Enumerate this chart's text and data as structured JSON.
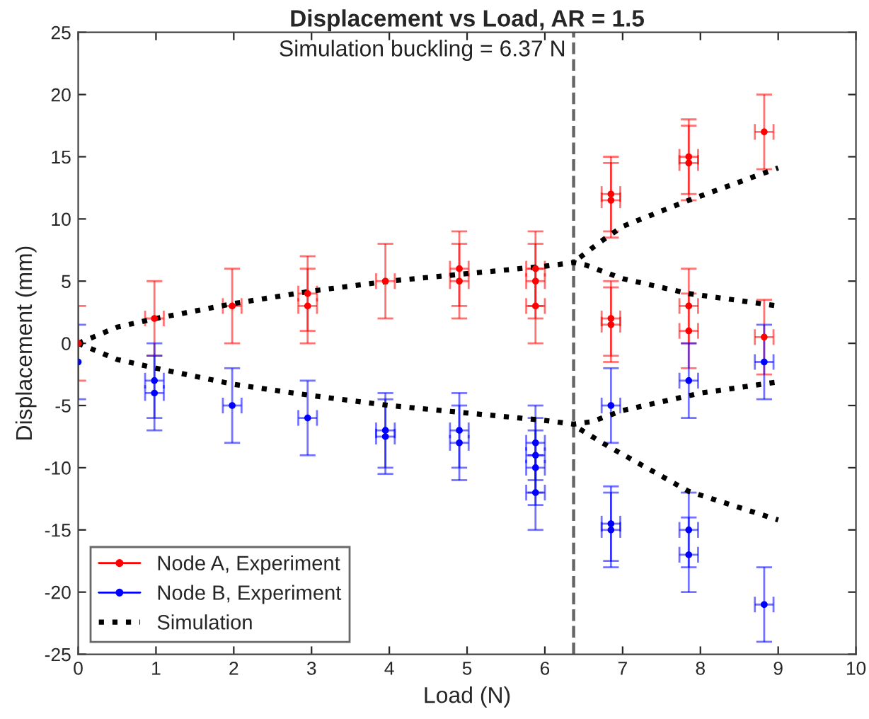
{
  "chart_data": {
    "type": "scatter",
    "title": "Displacement vs Load, AR = 1.5",
    "xlabel": "Load (N)",
    "ylabel": "Displacement (mm)",
    "xlim": [
      0,
      10
    ],
    "ylim": [
      -25,
      25
    ],
    "xticks": [
      0,
      1,
      2,
      3,
      4,
      5,
      6,
      7,
      8,
      9,
      10
    ],
    "yticks": [
      -25,
      -20,
      -15,
      -10,
      -5,
      0,
      5,
      10,
      15,
      20,
      25
    ],
    "grid": false,
    "legend": "bottom left",
    "marker": "circle",
    "series": [
      {
        "name": "Node A, Experiment",
        "color": "#ff0000",
        "x": [
          0,
          0.98,
          1.98,
          2.95,
          2.95,
          3.95,
          4.9,
          4.9,
          5.88,
          5.88,
          5.88,
          6.85,
          6.85,
          6.85,
          6.85,
          7.85,
          7.85,
          7.85,
          7.85,
          8.82,
          8.82
        ],
        "values": [
          0,
          2,
          3,
          4,
          3,
          5,
          6,
          5,
          6,
          5,
          3,
          12,
          11.5,
          2,
          1.5,
          15,
          14.5,
          3,
          1,
          17,
          0.5
        ],
        "errors": [
          3,
          3,
          3,
          3,
          3,
          3,
          3,
          3,
          3,
          3,
          3,
          3,
          3,
          3,
          3,
          3,
          3,
          3,
          3,
          3,
          3
        ],
        "xerrors": [
          null,
          0.12,
          0.12,
          0.12,
          0.12,
          0.12,
          0.12,
          0.12,
          0.12,
          0.12,
          0.12,
          0.12,
          0.12,
          0.12,
          0.12,
          0.12,
          0.12,
          0.12,
          0.12,
          0.12,
          0.12
        ]
      },
      {
        "name": "Node B, Experiment",
        "color": "#0000ff",
        "x": [
          0,
          0.98,
          0.98,
          1.98,
          2.95,
          3.95,
          3.95,
          4.9,
          4.9,
          5.88,
          5.88,
          5.88,
          5.88,
          6.85,
          6.85,
          6.85,
          7.85,
          7.85,
          7.85,
          8.82,
          8.82
        ],
        "values": [
          -1.5,
          -3,
          -4,
          -5,
          -6,
          -7,
          -7.5,
          -7,
          -8,
          -8,
          -9,
          -10,
          -12,
          -5,
          -14.5,
          -15,
          -3,
          -15,
          -17,
          -1.5,
          -21
        ],
        "errors": [
          3,
          3,
          3,
          3,
          3,
          3,
          3,
          3,
          3,
          3,
          3,
          3,
          3,
          3,
          3,
          3,
          3,
          3,
          3,
          3,
          3
        ],
        "xerrors": [
          null,
          0.12,
          0.12,
          0.12,
          0.12,
          0.12,
          0.12,
          0.12,
          0.12,
          0.12,
          0.12,
          0.12,
          0.12,
          0.12,
          0.12,
          0.12,
          0.12,
          0.12,
          0.12,
          0.12,
          0.12
        ]
      },
      {
        "name": "Simulation",
        "color": "#000000",
        "type": "line",
        "line_style": "dotted",
        "marker": "none",
        "x": [
          0,
          0.5,
          1,
          2,
          3,
          4,
          5,
          6,
          6.37,
          6.52,
          7,
          7.85,
          9
        ],
        "values": [
          0,
          1.3,
          2,
          3.2,
          4.2,
          5,
          5.6,
          6.2,
          6.5,
          6.3,
          5.2,
          4,
          3
        ]
      },
      {
        "color": "#000000",
        "type": "line",
        "line_style": "dotted",
        "marker": "none",
        "x": [
          0,
          0.5,
          1,
          2,
          3,
          4,
          5,
          6,
          6.37,
          6.6,
          7,
          8,
          9
        ],
        "values": [
          0,
          -1.3,
          -2,
          -3.3,
          -4.2,
          -5,
          -5.6,
          -6.2,
          -6.5,
          -6.3,
          -5.4,
          -4,
          -3.1
        ]
      },
      {
        "color": "#000000",
        "type": "line",
        "line_style": "dotted",
        "marker": "none",
        "x": [
          6.45,
          6.7,
          7,
          7.85,
          9
        ],
        "values": [
          6.9,
          8.1,
          9.4,
          11.5,
          14.1
        ]
      },
      {
        "color": "#000000",
        "type": "line",
        "line_style": "dotted",
        "marker": "none",
        "x": [
          6.45,
          6.82,
          7.85,
          9
        ],
        "values": [
          -6.9,
          -8.3,
          -11.9,
          -14.2
        ]
      }
    ],
    "ref_lines": [
      {
        "axis": "x",
        "value": 6.37,
        "label": "Simulation buckling = 6.37 N",
        "color": "#666666",
        "line_style": "dashed"
      }
    ]
  }
}
